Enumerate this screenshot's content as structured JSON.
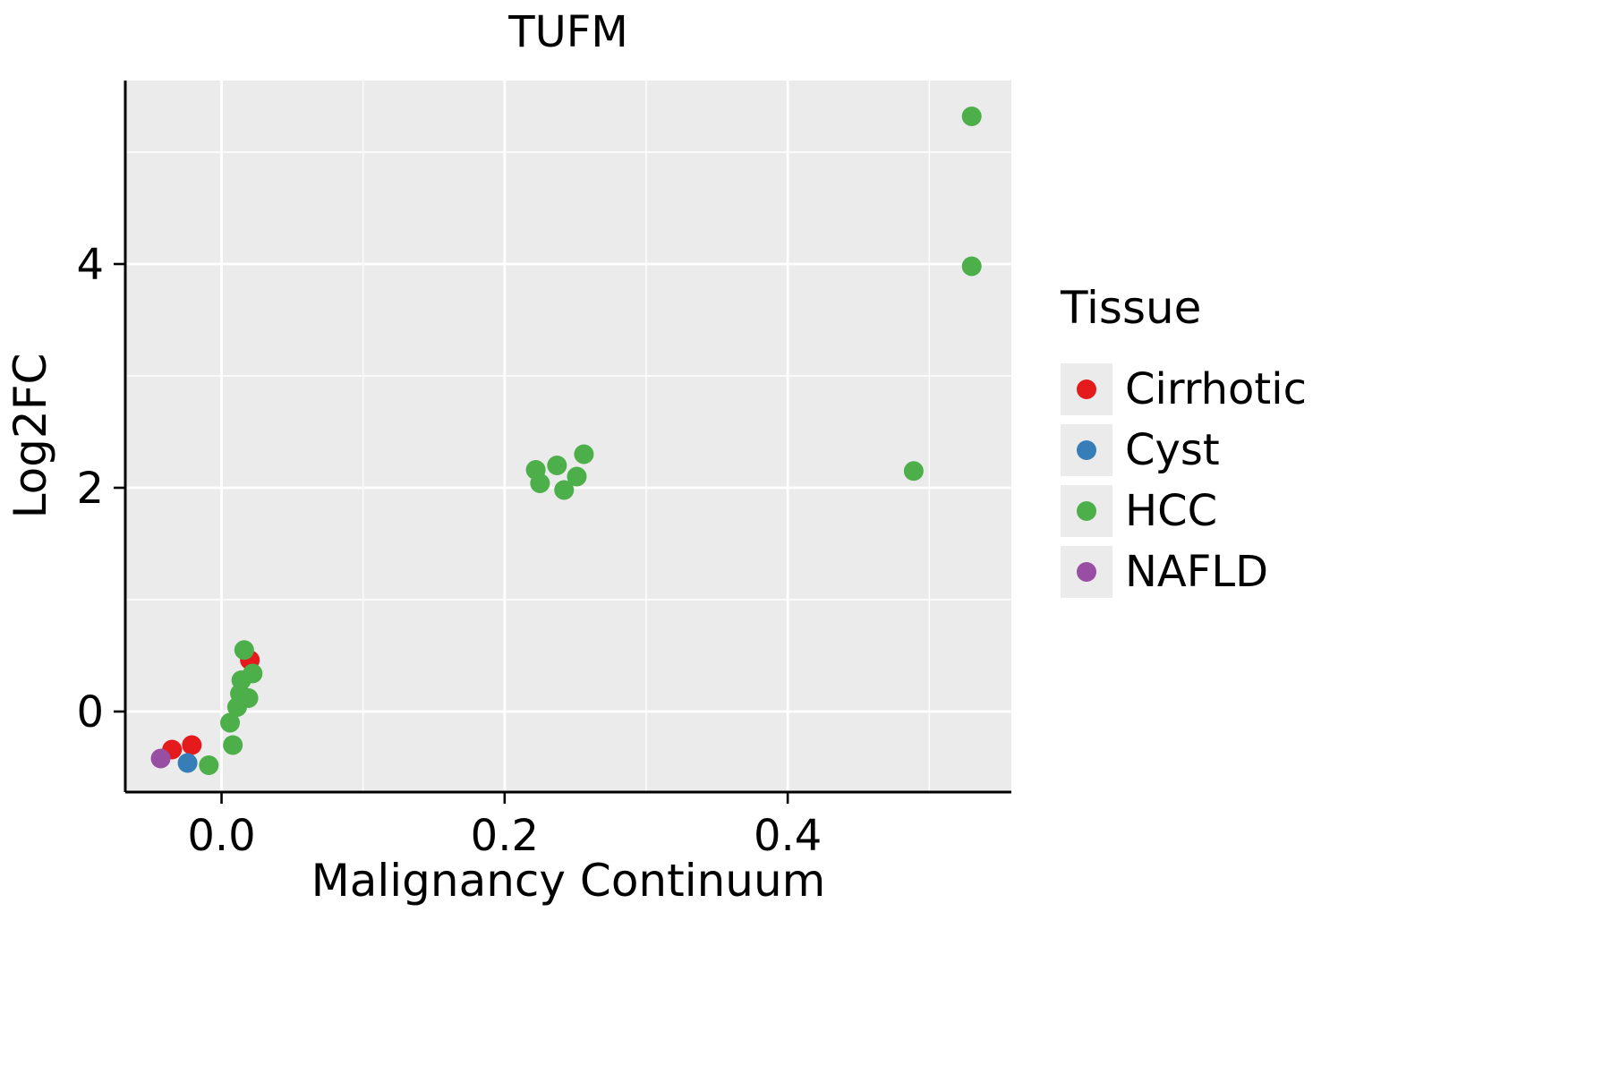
{
  "title": "TUFM",
  "axes": {
    "xlabel": "Malignancy Continuum",
    "ylabel": "Log2FC"
  },
  "legend": {
    "title": "Tissue",
    "entries": [
      {
        "label": "Cirrhotic",
        "color": "#E41A1C"
      },
      {
        "label": "Cyst",
        "color": "#377EB8"
      },
      {
        "label": "HCC",
        "color": "#4DAF4A"
      },
      {
        "label": "NAFLD",
        "color": "#984EA3"
      }
    ]
  },
  "colors": {
    "panel_bg": "#EBEBEB",
    "grid": "#FFFFFF",
    "axis": "#000000",
    "text": "#000000"
  },
  "chart_data": {
    "type": "scatter",
    "title": "TUFM",
    "xlabel": "Malignancy Continuum",
    "ylabel": "Log2FC",
    "xlim": [
      -0.068,
      0.558
    ],
    "ylim": [
      -0.72,
      5.64
    ],
    "x_ticks": [
      0.0,
      0.2,
      0.4
    ],
    "x_tick_labels": [
      "0.0",
      "0.2",
      "0.4"
    ],
    "x_minor_ticks": [
      0.1,
      0.3,
      0.5
    ],
    "y_ticks": [
      0,
      2,
      4
    ],
    "y_tick_labels": [
      "0",
      "2",
      "4"
    ],
    "y_minor_ticks": [
      1,
      3,
      5
    ],
    "grid": true,
    "legend_position": "right",
    "series": [
      {
        "name": "Cirrhotic",
        "color": "#E41A1C",
        "points": [
          [
            -0.035,
            -0.34
          ],
          [
            -0.021,
            -0.3
          ],
          [
            0.02,
            0.46
          ]
        ]
      },
      {
        "name": "Cyst",
        "color": "#377EB8",
        "points": [
          [
            -0.024,
            -0.46
          ]
        ]
      },
      {
        "name": "HCC",
        "color": "#4DAF4A",
        "points": [
          [
            -0.009,
            -0.48
          ],
          [
            0.008,
            -0.3
          ],
          [
            0.006,
            -0.1
          ],
          [
            0.011,
            0.04
          ],
          [
            0.019,
            0.12
          ],
          [
            0.013,
            0.16
          ],
          [
            0.014,
            0.28
          ],
          [
            0.022,
            0.34
          ],
          [
            0.016,
            0.55
          ],
          [
            0.222,
            2.16
          ],
          [
            0.225,
            2.04
          ],
          [
            0.237,
            2.2
          ],
          [
            0.242,
            1.98
          ],
          [
            0.251,
            2.1
          ],
          [
            0.256,
            2.3
          ],
          [
            0.489,
            2.15
          ],
          [
            0.53,
            3.98
          ],
          [
            0.53,
            5.32
          ]
        ]
      },
      {
        "name": "NAFLD",
        "color": "#984EA3",
        "points": [
          [
            -0.043,
            -0.42
          ]
        ]
      }
    ]
  }
}
